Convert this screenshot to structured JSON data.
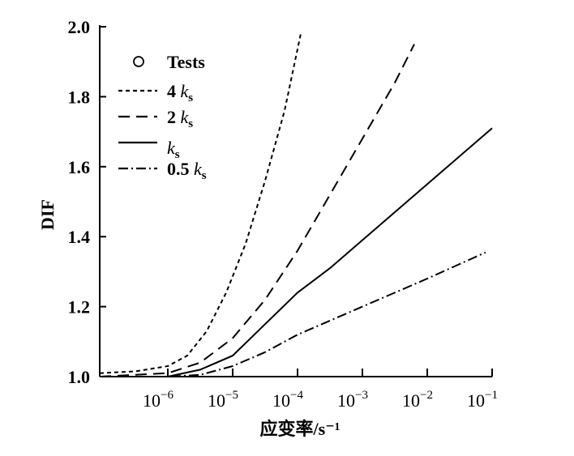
{
  "chart_data": {
    "type": "line",
    "title": "",
    "xlabel": "应变率/s⁻¹",
    "ylabel": "DIF",
    "xscale": "log",
    "xlim_log10": [
      -7.05,
      -1
    ],
    "ylim": [
      1.0,
      2.0
    ],
    "xticks": [
      {
        "v": -6,
        "label": "10",
        "exp": "−6"
      },
      {
        "v": -5,
        "label": "10",
        "exp": "−5"
      },
      {
        "v": -4,
        "label": "10",
        "exp": "−4"
      },
      {
        "v": -3,
        "label": "10",
        "exp": "−3"
      },
      {
        "v": -2,
        "label": "10",
        "exp": "−2"
      },
      {
        "v": -1,
        "label": "10",
        "exp": "−1"
      }
    ],
    "yticks": [
      {
        "v": 1.0,
        "label": "1.0"
      },
      {
        "v": 1.2,
        "label": "1.2"
      },
      {
        "v": 1.4,
        "label": "1.4"
      },
      {
        "v": 1.6,
        "label": "1.6"
      },
      {
        "v": 1.8,
        "label": "1.8"
      },
      {
        "v": 2.0,
        "label": "2.0"
      }
    ],
    "legend_position": "top-left",
    "legend": {
      "tests": "Tests"
    },
    "series": [
      {
        "name": "4 ks",
        "num": "4",
        "dash": "5,4",
        "points": [
          [
            -7.05,
            1.01
          ],
          [
            -6.5,
            1.015
          ],
          [
            -6,
            1.03
          ],
          [
            -5.7,
            1.06
          ],
          [
            -5.4,
            1.13
          ],
          [
            -5.1,
            1.24
          ],
          [
            -4.8,
            1.38
          ],
          [
            -4.5,
            1.56
          ],
          [
            -4.2,
            1.76
          ],
          [
            -3.95,
            1.98
          ]
        ]
      },
      {
        "name": "2 ks",
        "num": "2",
        "dash": "14,8",
        "points": [
          [
            -7.05,
            1.0
          ],
          [
            -6,
            1.01
          ],
          [
            -5.5,
            1.04
          ],
          [
            -5,
            1.11
          ],
          [
            -4.5,
            1.22
          ],
          [
            -4,
            1.36
          ],
          [
            -3.5,
            1.52
          ],
          [
            -3,
            1.68
          ],
          [
            -2.5,
            1.84
          ],
          [
            -2.2,
            1.95
          ]
        ]
      },
      {
        "name": "ks",
        "num": "",
        "dash": "",
        "points": [
          [
            -7.05,
            1.0
          ],
          [
            -6,
            1.0
          ],
          [
            -5.5,
            1.02
          ],
          [
            -5,
            1.06
          ],
          [
            -4.5,
            1.15
          ],
          [
            -4,
            1.24
          ],
          [
            -3.5,
            1.31
          ],
          [
            -3,
            1.39
          ],
          [
            -2,
            1.55
          ],
          [
            -1,
            1.71
          ]
        ]
      },
      {
        "name": "0.5 ks",
        "num": "0.5",
        "dash": "12,4,2,4",
        "points": [
          [
            -7.05,
            1.0
          ],
          [
            -6,
            1.0
          ],
          [
            -5.5,
            1.005
          ],
          [
            -5,
            1.03
          ],
          [
            -4.5,
            1.07
          ],
          [
            -4,
            1.12
          ],
          [
            -3,
            1.2
          ],
          [
            -2,
            1.28
          ],
          [
            -1.1,
            1.355
          ]
        ]
      }
    ]
  }
}
